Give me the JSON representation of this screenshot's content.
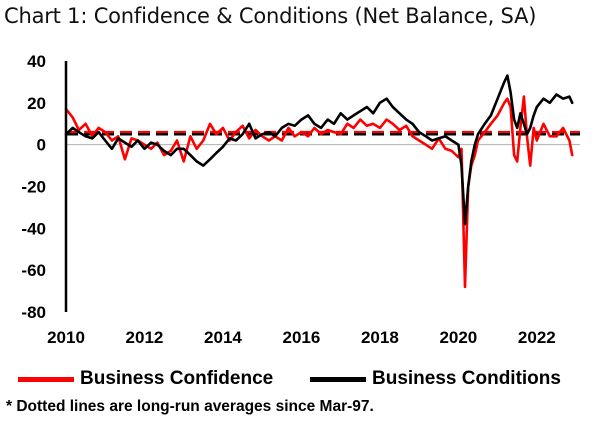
{
  "chart_data": {
    "type": "line",
    "title": "Chart 1: Confidence & Conditions (Net Balance, SA)",
    "xlabel": "",
    "ylabel": "",
    "xlim": [
      2010,
      2023.1
    ],
    "ylim": [
      -80,
      40
    ],
    "x_ticks": [
      "2010",
      "2012",
      "2014",
      "2016",
      "2018",
      "2020",
      "2022"
    ],
    "y_ticks": [
      "40",
      "20",
      "0",
      "-20",
      "-40",
      "-60",
      "-80"
    ],
    "series": [
      {
        "name": "Business Confidence",
        "color": "#ff0000",
        "x": [
          2010.0,
          2010.17,
          2010.33,
          2010.5,
          2010.67,
          2010.83,
          2011.0,
          2011.17,
          2011.33,
          2011.5,
          2011.67,
          2011.83,
          2012.0,
          2012.17,
          2012.33,
          2012.5,
          2012.67,
          2012.83,
          2013.0,
          2013.17,
          2013.33,
          2013.5,
          2013.67,
          2013.83,
          2014.0,
          2014.17,
          2014.33,
          2014.5,
          2014.67,
          2014.83,
          2015.0,
          2015.17,
          2015.33,
          2015.5,
          2015.67,
          2015.83,
          2016.0,
          2016.17,
          2016.33,
          2016.5,
          2016.67,
          2016.83,
          2017.0,
          2017.17,
          2017.33,
          2017.5,
          2017.67,
          2017.83,
          2018.0,
          2018.17,
          2018.33,
          2018.5,
          2018.67,
          2018.83,
          2019.0,
          2019.17,
          2019.33,
          2019.5,
          2019.67,
          2019.83,
          2020.0,
          2020.08,
          2020.17,
          2020.25,
          2020.33,
          2020.42,
          2020.5,
          2020.67,
          2020.83,
          2021.0,
          2021.17,
          2021.25,
          2021.33,
          2021.42,
          2021.5,
          2021.58,
          2021.67,
          2021.75,
          2021.83,
          2021.92,
          2022.0,
          2022.17,
          2022.33,
          2022.5,
          2022.67,
          2022.83,
          2022.9
        ],
        "values": [
          17,
          13,
          7,
          10,
          4,
          8,
          6,
          2,
          4,
          -7,
          3,
          2,
          0,
          -2,
          1,
          -5,
          -3,
          2,
          -8,
          4,
          -2,
          2,
          10,
          5,
          8,
          2,
          6,
          9,
          3,
          7,
          4,
          2,
          4,
          2,
          8,
          4,
          6,
          4,
          8,
          5,
          7,
          6,
          5,
          10,
          8,
          12,
          9,
          10,
          8,
          12,
          10,
          7,
          9,
          4,
          2,
          0,
          -2,
          3,
          -2,
          -3,
          -6,
          -2,
          -68,
          -20,
          -10,
          -5,
          2,
          6,
          10,
          14,
          20,
          22,
          18,
          -5,
          -8,
          8,
          23,
          4,
          -10,
          8,
          2,
          10,
          4,
          4,
          8,
          2,
          -5
        ]
      },
      {
        "name": "Business Conditions",
        "color": "#000000",
        "x": [
          2010.0,
          2010.17,
          2010.33,
          2010.5,
          2010.67,
          2010.83,
          2011.0,
          2011.17,
          2011.33,
          2011.5,
          2011.67,
          2011.83,
          2012.0,
          2012.17,
          2012.33,
          2012.5,
          2012.67,
          2012.83,
          2013.0,
          2013.17,
          2013.33,
          2013.5,
          2013.67,
          2013.83,
          2014.0,
          2014.17,
          2014.33,
          2014.5,
          2014.67,
          2014.83,
          2015.0,
          2015.17,
          2015.33,
          2015.5,
          2015.67,
          2015.83,
          2016.0,
          2016.17,
          2016.33,
          2016.5,
          2016.67,
          2016.83,
          2017.0,
          2017.17,
          2017.33,
          2017.5,
          2017.67,
          2017.83,
          2018.0,
          2018.17,
          2018.33,
          2018.5,
          2018.67,
          2018.83,
          2019.0,
          2019.17,
          2019.33,
          2019.5,
          2019.67,
          2019.83,
          2020.0,
          2020.08,
          2020.17,
          2020.25,
          2020.33,
          2020.42,
          2020.5,
          2020.67,
          2020.83,
          2021.0,
          2021.17,
          2021.25,
          2021.33,
          2021.42,
          2021.5,
          2021.58,
          2021.67,
          2021.75,
          2021.83,
          2021.92,
          2022.0,
          2022.17,
          2022.33,
          2022.5,
          2022.67,
          2022.83,
          2022.9
        ],
        "values": [
          5,
          8,
          6,
          4,
          3,
          6,
          2,
          -2,
          3,
          1,
          -1,
          2,
          -2,
          1,
          0,
          -3,
          -5,
          -2,
          -2,
          -5,
          -8,
          -10,
          -7,
          -4,
          -1,
          3,
          2,
          5,
          10,
          3,
          5,
          6,
          4,
          8,
          10,
          9,
          12,
          14,
          10,
          8,
          12,
          10,
          15,
          12,
          14,
          16,
          18,
          15,
          20,
          22,
          18,
          15,
          12,
          10,
          6,
          4,
          2,
          3,
          4,
          2,
          0,
          -10,
          -38,
          -20,
          -8,
          0,
          5,
          10,
          14,
          22,
          30,
          33,
          25,
          12,
          8,
          15,
          10,
          5,
          8,
          14,
          18,
          22,
          20,
          24,
          22,
          23,
          20
        ]
      }
    ],
    "reference_lines": [
      {
        "name": "Business Confidence long-run average",
        "color": "#ff0000",
        "value": 6
      },
      {
        "name": "Business Conditions long-run average",
        "color": "#000000",
        "value": 5
      }
    ],
    "legend": {
      "position": "bottom",
      "items": [
        "Business Confidence",
        "Business Conditions"
      ]
    },
    "footnote": "* Dotted lines are long-run averages since Mar-97.",
    "grid": false
  }
}
